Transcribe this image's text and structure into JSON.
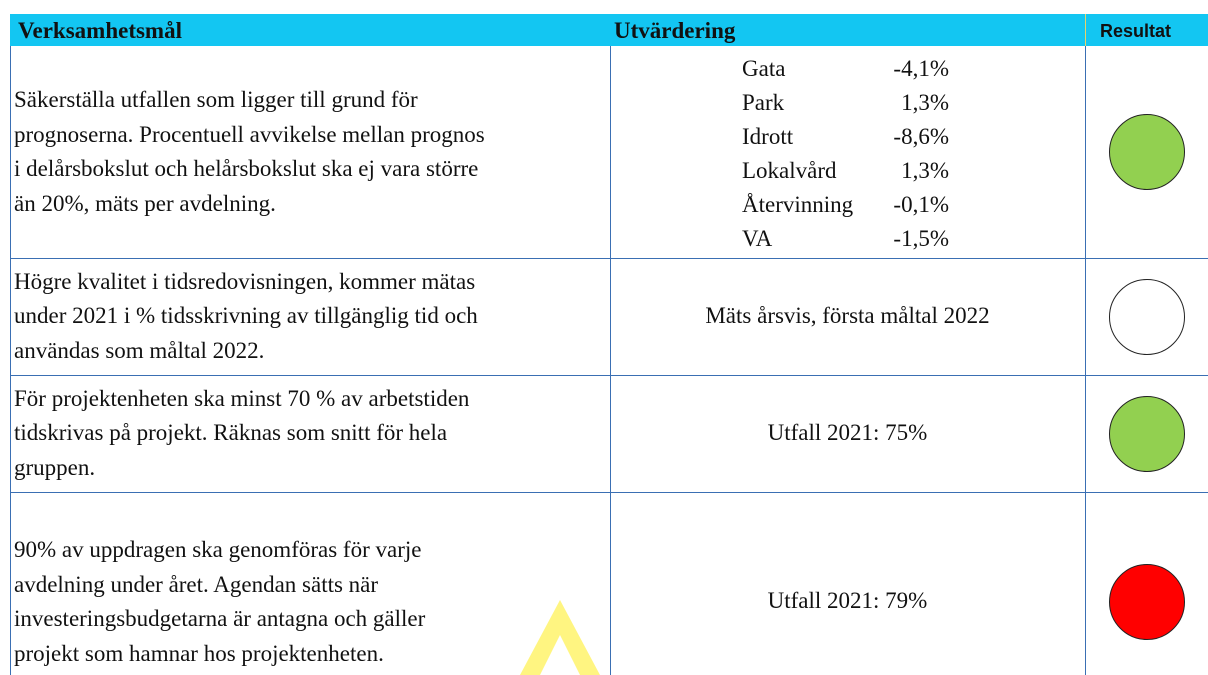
{
  "header": [
    "Verksamhetsmål",
    "Utvärdering",
    "Resultat"
  ],
  "rows": [
    {
      "goal": [
        "Säkerställa utfallen som ligger till grund för",
        "prognoserna. Procentuell avvikelse mellan prognos",
        "i delårsbokslut och helårsbokslut ska ej vara större",
        "än 20%, mäts per avdelning."
      ],
      "evaluation": [
        [
          "Gata",
          "-4,1%"
        ],
        [
          "Park",
          "1,3%"
        ],
        [
          "Idrott",
          "-8,6%"
        ],
        [
          "Lokalvård",
          "1,3%"
        ],
        [
          "Återvinning",
          "-0,1%"
        ],
        [
          "VA",
          "-1,5%"
        ]
      ],
      "result_color": "#92d050"
    },
    {
      "goal": [
        "Högre kvalitet i tidsredovisningen, kommer mätas",
        "under 2021 i % tidsskrivning av tillgänglig tid och",
        "användas som måltal 2022."
      ],
      "evaluation": "Mäts årsvis, första måltal 2022",
      "result_color": "#ffffff"
    },
    {
      "goal": [
        "För projektenheten ska minst 70 % av arbetstiden",
        "tidskrivas på projekt. Räknas som snitt för hela",
        "gruppen."
      ],
      "evaluation": "Utfall 2021: 75%",
      "result_color": "#92d050"
    },
    {
      "goal": [
        "90% av uppdragen ska genomföras för varje",
        "avdelning under året. Agendan sätts när",
        "investeringsbudgetarna är antagna och gäller",
        "projekt som hamnar hos projektenheten."
      ],
      "evaluation": "Utfall 2021: 79%",
      "result_color": "#ff0000"
    }
  ]
}
